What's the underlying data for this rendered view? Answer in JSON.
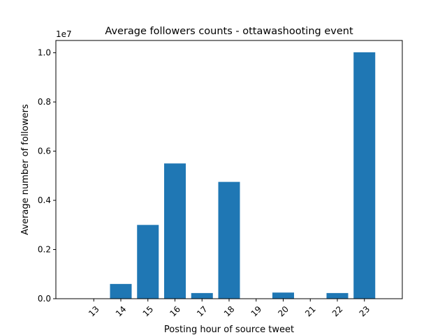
{
  "chart_data": {
    "type": "bar",
    "title": "Average followers counts - ottawashooting event",
    "xlabel": "Posting hour of source tweet",
    "ylabel": "Average number of followers",
    "y_offset_label": "1e7",
    "y_scale": 10000000,
    "categories": [
      "13",
      "14",
      "15",
      "16",
      "17",
      "18",
      "19",
      "20",
      "21",
      "22",
      "23"
    ],
    "values": [
      0,
      600000,
      3000000,
      5500000,
      230000,
      4750000,
      0,
      250000,
      0,
      230000,
      10020000
    ],
    "ylim": [
      0,
      10500000
    ],
    "yticks": [
      0,
      2000000,
      4000000,
      6000000,
      8000000,
      10000000
    ],
    "ytick_labels": [
      "0.0",
      "0.2",
      "0.4",
      "0.6",
      "0.8",
      "1.0"
    ],
    "bar_color": "#1f77b4",
    "grid": false,
    "legend": false
  }
}
